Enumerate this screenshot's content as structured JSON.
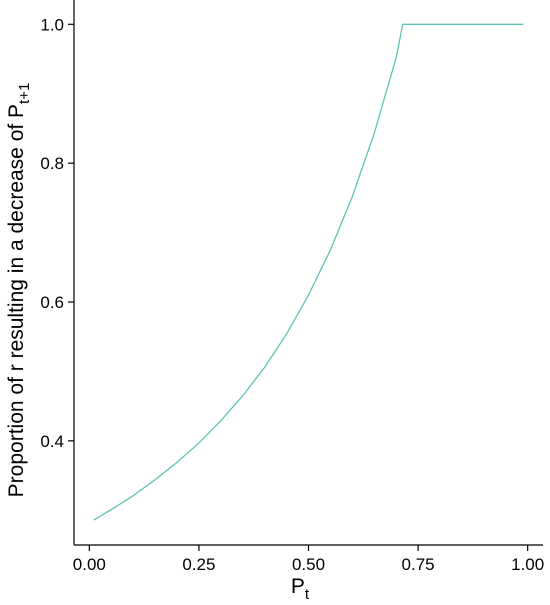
{
  "chart_data": {
    "type": "line",
    "xlabel": {
      "base": "P",
      "subscript": "t"
    },
    "ylabel": {
      "text": "Proportion of r resulting in a decrease of ",
      "base": "P",
      "subscript": "t+1"
    },
    "xlim": [
      -0.035,
      1.035
    ],
    "ylim": [
      0.25,
      1.035
    ],
    "x_ticks": [
      0.0,
      0.25,
      0.5,
      0.75,
      1.0
    ],
    "x_tick_labels": [
      "0.00",
      "0.25",
      "0.50",
      "0.75",
      "1.00"
    ],
    "y_ticks": [
      0.4,
      0.6,
      0.8,
      1.0
    ],
    "y_tick_labels": [
      "0.4",
      "0.6",
      "0.8",
      "1.0"
    ],
    "grid": false,
    "line_color": "#5fc2b6",
    "series": [
      {
        "x": [
          0.01,
          0.05,
          0.1,
          0.15,
          0.2,
          0.25,
          0.3,
          0.35,
          0.4,
          0.45,
          0.5,
          0.55,
          0.6,
          0.65,
          0.7,
          0.715,
          0.75,
          0.8,
          0.85,
          0.9,
          0.95,
          0.99
        ],
        "y": [
          0.286,
          0.301,
          0.321,
          0.344,
          0.369,
          0.397,
          0.429,
          0.465,
          0.506,
          0.554,
          0.61,
          0.675,
          0.752,
          0.843,
          0.952,
          1.0,
          1.0,
          1.0,
          1.0,
          1.0,
          1.0,
          1.0
        ]
      }
    ]
  }
}
